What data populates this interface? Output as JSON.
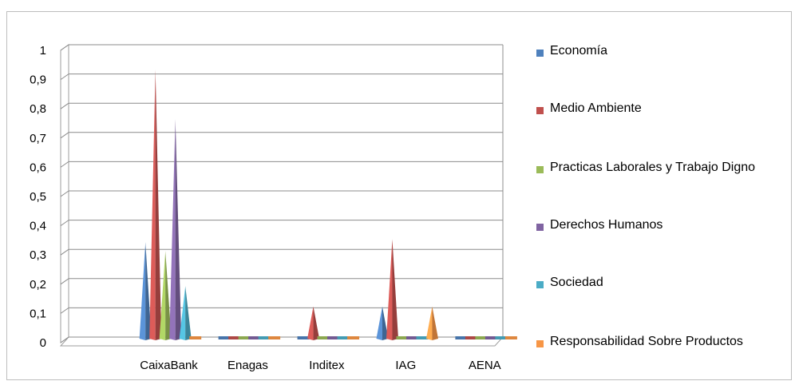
{
  "chart_data": {
    "type": "bar",
    "subtype": "3d-cone",
    "categories": [
      "CaixaBank",
      "Enagas",
      "Inditex",
      "IAG",
      "AENA"
    ],
    "series": [
      {
        "name": "Economía",
        "color": "#4f81bd",
        "values": [
          0.33,
          0,
          0,
          0.11,
          0
        ]
      },
      {
        "name": "Medio Ambiente",
        "color": "#c0504d",
        "values": [
          0.92,
          0,
          0.11,
          0.34,
          0
        ]
      },
      {
        "name": "Practicas Laborales y Trabajo Digno",
        "color": "#9bbb59",
        "values": [
          0.3,
          0,
          0,
          0,
          0
        ]
      },
      {
        "name": "Derechos Humanos",
        "color": "#8064a2",
        "values": [
          0.75,
          0,
          0,
          0,
          0
        ]
      },
      {
        "name": "Sociedad",
        "color": "#4bacc6",
        "values": [
          0.18,
          0,
          0,
          0,
          0
        ]
      },
      {
        "name": "Responsabilidad Sobre Productos",
        "color": "#f79646",
        "values": [
          0,
          0,
          0,
          0.11,
          0
        ]
      }
    ],
    "yticks": [
      "0",
      "0,1",
      "0,2",
      "0,3",
      "0,4",
      "0,5",
      "0,6",
      "0,7",
      "0,8",
      "0,9",
      "1"
    ],
    "ylim": [
      0,
      1
    ],
    "grid": true,
    "legend_position": "right",
    "title": "",
    "xlabel": "",
    "ylabel": ""
  }
}
